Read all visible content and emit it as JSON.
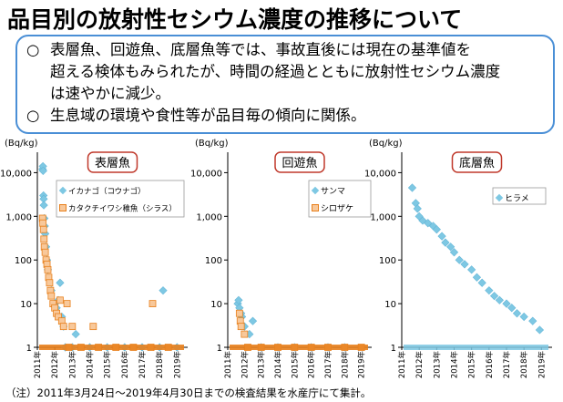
{
  "title": "品目別の放射性セシウム濃度の推移について",
  "summary": {
    "line1": "表層魚、回遊魚、底層魚等では、事故直後には現在の基準値を",
    "line2": "超える検体もみられたが、時間の経過とともに放射性セシウム濃度",
    "line3": "は速やかに減少。",
    "line4": "生息域の環境や食性等が品目毎の傾向に関係。",
    "bullet_symbol": "○"
  },
  "footnote": "（注）2011年3月24日～2019年4月30日までの検査結果を水産庁にて集計。",
  "colors": {
    "accent_border": "#4a8fd6",
    "label_border": "#c0392b",
    "blue_marker": "#7ec8e3",
    "orange_marker": "#e8801c",
    "orange_fill": "#f8c89a"
  },
  "chart_data": [
    {
      "type": "scatter",
      "title": "表層魚",
      "ylabel": "(Bq/kg)",
      "yscale": "log",
      "ylim": [
        1,
        20000
      ],
      "yticks": [
        "1",
        "10",
        "100",
        "1,000",
        "10,000"
      ],
      "xticks": [
        "2011年",
        "2012年",
        "2013年",
        "2014年",
        "2015年",
        "2016年",
        "2017年",
        "2018年",
        "2019年"
      ],
      "xlim": [
        2011,
        2019.4
      ],
      "legend_position": "top-right",
      "series": [
        {
          "name": "イカナゴ（コウナゴ）",
          "marker": "diamond",
          "points": [
            [
              2011.3,
              12000
            ],
            [
              2011.32,
              14000
            ],
            [
              2011.33,
              11000
            ],
            [
              2011.35,
              3000
            ],
            [
              2011.36,
              2500
            ],
            [
              2011.37,
              1800
            ],
            [
              2011.4,
              900
            ],
            [
              2011.42,
              600
            ],
            [
              2011.45,
              400
            ],
            [
              2011.5,
              200
            ],
            [
              2011.55,
              100
            ],
            [
              2011.6,
              60
            ],
            [
              2011.8,
              20
            ],
            [
              2012.0,
              10
            ],
            [
              2012.1,
              8
            ],
            [
              2012.2,
              12
            ],
            [
              2012.3,
              30
            ],
            [
              2012.4,
              5
            ],
            [
              2012.5,
              3
            ],
            [
              2013.2,
              2
            ],
            [
              2018.2,
              20
            ],
            [
              2012.6,
              1
            ],
            [
              2013.0,
              1
            ],
            [
              2014.0,
              1
            ],
            [
              2015.0,
              1
            ],
            [
              2016.0,
              1
            ],
            [
              2017.0,
              1
            ],
            [
              2018.0,
              1
            ],
            [
              2019.0,
              1
            ]
          ]
        },
        {
          "name": "カタクチイワシ稚魚（シラス）",
          "marker": "square",
          "points": [
            [
              2011.3,
              900
            ],
            [
              2011.32,
              700
            ],
            [
              2011.35,
              500
            ],
            [
              2011.38,
              300
            ],
            [
              2011.4,
              200
            ],
            [
              2011.45,
              150
            ],
            [
              2011.5,
              100
            ],
            [
              2011.55,
              80
            ],
            [
              2011.6,
              60
            ],
            [
              2011.65,
              40
            ],
            [
              2011.7,
              30
            ],
            [
              2011.75,
              20
            ],
            [
              2011.8,
              15
            ],
            [
              2011.9,
              10
            ],
            [
              2012.0,
              8
            ],
            [
              2012.1,
              6
            ],
            [
              2012.2,
              5
            ],
            [
              2012.3,
              12
            ],
            [
              2012.4,
              4
            ],
            [
              2012.5,
              3
            ],
            [
              2012.7,
              10
            ],
            [
              2013.0,
              3
            ],
            [
              2014.2,
              3
            ],
            [
              2017.6,
              10
            ],
            [
              2012.8,
              1
            ],
            [
              2013.5,
              1
            ],
            [
              2014.5,
              1
            ],
            [
              2015.5,
              1
            ],
            [
              2016.5,
              1
            ],
            [
              2017.5,
              1
            ],
            [
              2018.5,
              1
            ]
          ]
        }
      ]
    },
    {
      "type": "scatter",
      "title": "回遊魚",
      "ylabel": "(Bq/kg)",
      "yscale": "log",
      "ylim": [
        1,
        20000
      ],
      "yticks": [
        "1",
        "10",
        "100",
        "1,000",
        "10,000"
      ],
      "xticks": [
        "2011年",
        "2012年",
        "2013年",
        "2014年",
        "2015年",
        "2016年",
        "2017年",
        "2018年",
        "2019年"
      ],
      "xlim": [
        2011,
        2019.4
      ],
      "legend_position": "top-right",
      "series": [
        {
          "name": "サンマ",
          "marker": "diamond",
          "points": [
            [
              2011.6,
              10
            ],
            [
              2011.65,
              12
            ],
            [
              2011.7,
              8
            ],
            [
              2011.8,
              6
            ],
            [
              2011.85,
              5
            ],
            [
              2012.0,
              3
            ],
            [
              2012.3,
              2
            ],
            [
              2012.5,
              4
            ],
            [
              2013.0,
              1
            ],
            [
              2014.0,
              1
            ],
            [
              2015.0,
              1
            ],
            [
              2016.0,
              1
            ],
            [
              2017.0,
              1
            ],
            [
              2018.0,
              1
            ]
          ]
        },
        {
          "name": "シロザケ",
          "marker": "square",
          "points": [
            [
              2011.7,
              6
            ],
            [
              2011.75,
              4
            ],
            [
              2011.8,
              3
            ],
            [
              2012.0,
              2
            ],
            [
              2012.2,
              1
            ],
            [
              2013.0,
              1
            ],
            [
              2014.0,
              1
            ],
            [
              2015.0,
              1
            ],
            [
              2016.0,
              1
            ],
            [
              2017.0,
              1
            ],
            [
              2018.0,
              1
            ],
            [
              2019.0,
              1
            ]
          ]
        }
      ]
    },
    {
      "type": "scatter",
      "title": "底層魚",
      "ylabel": "(Bq/kg)",
      "yscale": "log",
      "ylim": [
        1,
        20000
      ],
      "yticks": [
        "1",
        "10",
        "100",
        "1,000",
        "10,000"
      ],
      "xticks": [
        "2011年",
        "2012年",
        "2013年",
        "2014年",
        "2015年",
        "2016年",
        "2017年",
        "2018年",
        "2019年"
      ],
      "xlim": [
        2011,
        2019.4
      ],
      "legend_position": "top-right",
      "series": [
        {
          "name": "ヒラメ",
          "marker": "diamond",
          "points": [
            [
              2011.6,
              4500
            ],
            [
              2011.8,
              2000
            ],
            [
              2011.9,
              1500
            ],
            [
              2012.0,
              1000
            ],
            [
              2012.2,
              800
            ],
            [
              2012.5,
              700
            ],
            [
              2012.8,
              600
            ],
            [
              2013.0,
              500
            ],
            [
              2013.3,
              350
            ],
            [
              2013.5,
              250
            ],
            [
              2013.8,
              200
            ],
            [
              2014.0,
              150
            ],
            [
              2014.3,
              100
            ],
            [
              2014.6,
              80
            ],
            [
              2015.0,
              60
            ],
            [
              2015.3,
              40
            ],
            [
              2015.6,
              30
            ],
            [
              2016.0,
              20
            ],
            [
              2016.3,
              15
            ],
            [
              2016.6,
              12
            ],
            [
              2017.0,
              10
            ],
            [
              2017.3,
              8
            ],
            [
              2017.6,
              6
            ],
            [
              2018.0,
              5
            ],
            [
              2018.5,
              4
            ],
            [
              2018.9,
              2.5
            ]
          ]
        }
      ]
    }
  ]
}
